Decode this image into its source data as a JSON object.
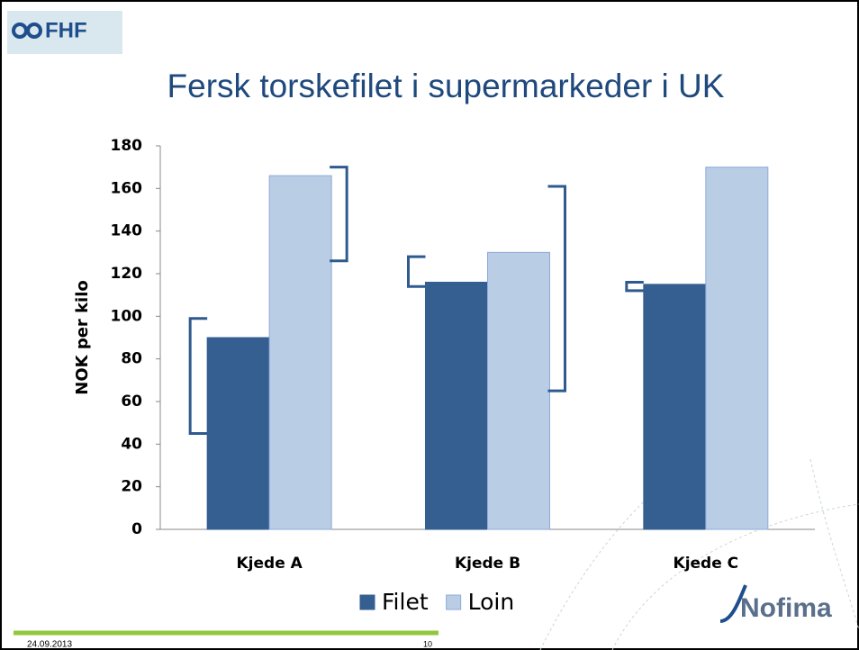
{
  "logo": "FHF",
  "brand": "Nofima",
  "date": "24.09.2013",
  "page_number": "10",
  "chart_data": {
    "type": "bar",
    "title": "Fersk torskefilet i supermarkeder i UK",
    "ylabel": "NOK per kilo",
    "categories": [
      "Kjede A",
      "Kjede B",
      "Kjede C"
    ],
    "series": [
      {
        "name": "Filet",
        "color": "#355f91",
        "values": [
          90,
          116,
          115
        ],
        "low": [
          45,
          114,
          112
        ],
        "high": [
          99,
          128,
          116
        ]
      },
      {
        "name": "Loin",
        "color": "#b9cde5",
        "values": [
          166,
          130,
          170
        ],
        "low": [
          126,
          65,
          null
        ],
        "high": [
          170,
          161,
          null
        ]
      }
    ],
    "ylim": [
      0,
      180
    ],
    "yticks": [
      0,
      20,
      40,
      60,
      80,
      100,
      120,
      140,
      160,
      180
    ],
    "grid": false,
    "legend": "bottom"
  }
}
